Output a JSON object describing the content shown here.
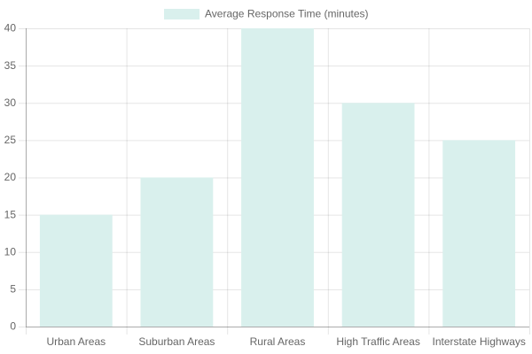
{
  "chart_data": {
    "type": "bar",
    "categories": [
      "Urban Areas",
      "Suburban Areas",
      "Rural Areas",
      "High Traffic Areas",
      "Interstate Highways"
    ],
    "series": [
      {
        "name": "Average Response Time (minutes)",
        "color": "#d9f0ed",
        "values": [
          15,
          20,
          40,
          30,
          25
        ]
      }
    ],
    "ylim": [
      0,
      40
    ],
    "yticks": [
      0,
      5,
      10,
      15,
      20,
      25,
      30,
      35,
      40
    ],
    "grid": true,
    "legend": "top"
  }
}
